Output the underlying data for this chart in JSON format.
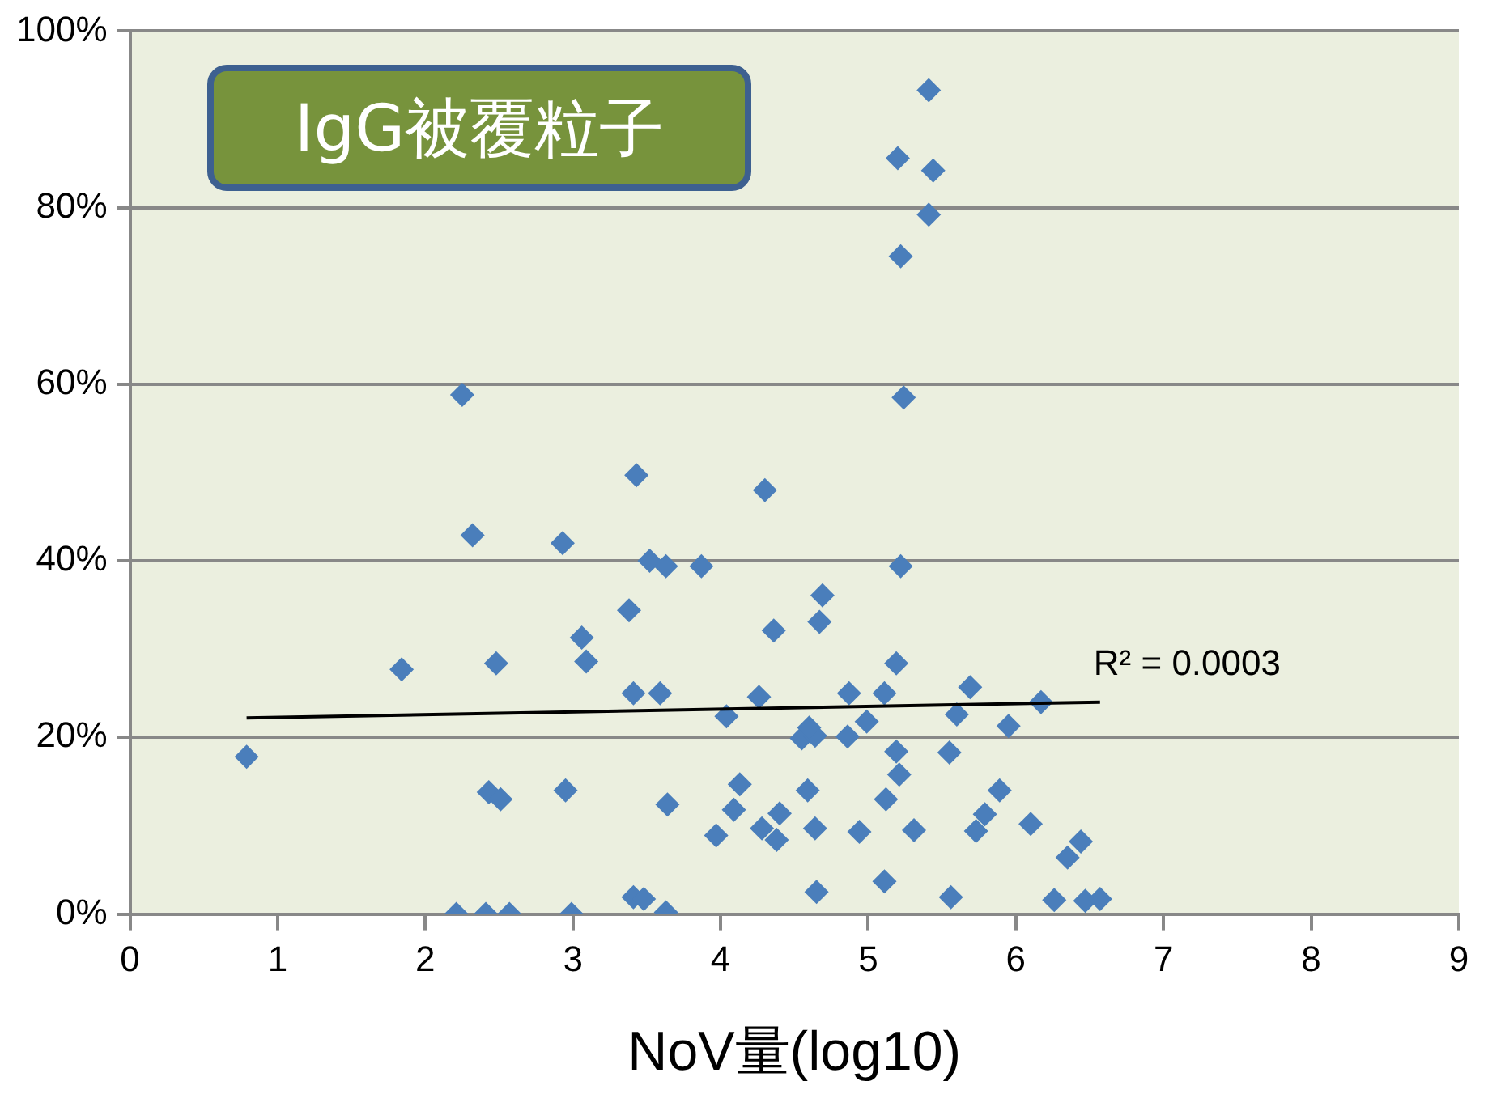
{
  "chart_data": {
    "type": "scatter",
    "title": "IgG被覆粒子",
    "xlabel": "NoV量(log10)",
    "xlim": [
      0,
      9
    ],
    "xticks": [
      0,
      1,
      2,
      3,
      4,
      5,
      6,
      7,
      8,
      9
    ],
    "ylim": [
      0,
      100
    ],
    "yticks": [
      {
        "value": 0,
        "label": "0%"
      },
      {
        "value": 20,
        "label": "20%"
      },
      {
        "value": 40,
        "label": "40%"
      },
      {
        "value": 60,
        "label": "60%"
      },
      {
        "value": 80,
        "label": "80%"
      },
      {
        "value": 100,
        "label": "100%"
      }
    ],
    "grid": "y",
    "legend": false,
    "marker": "diamond",
    "annotations": [
      {
        "text": "R² = 0.0003",
        "x": 6.57,
        "y": 24.0
      }
    ],
    "series": [
      {
        "color": "#4a7ebb",
        "x": [
          0.79,
          1.84,
          2.25,
          2.32,
          2.48,
          2.43,
          2.51,
          2.21,
          2.41,
          2.57,
          2.93,
          2.95,
          2.99,
          3.06,
          3.09,
          3.38,
          3.43,
          3.41,
          3.59,
          3.52,
          3.63,
          3.41,
          3.48,
          3.63,
          3.64,
          3.87,
          3.97,
          4.04,
          4.09,
          4.13,
          4.26,
          4.3,
          4.36,
          4.69,
          4.67,
          5.22,
          5.19,
          4.87,
          5.11,
          5.69,
          5.6,
          4.99,
          4.86,
          4.55,
          4.64,
          4.6,
          5.19,
          5.21,
          5.55,
          5.12,
          4.59,
          4.28,
          4.4,
          4.38,
          4.64,
          4.94,
          5.31,
          5.73,
          5.79,
          5.89,
          6.1,
          6.44,
          6.35,
          4.65,
          5.11,
          5.56,
          6.26,
          6.47,
          6.57,
          6.17,
          5.95,
          5.41,
          5.2,
          5.44,
          5.41,
          5.22,
          5.24
        ],
        "values": [
          17.8,
          27.7,
          58.8,
          42.9,
          28.4,
          13.8,
          13.0,
          0,
          0,
          0,
          42.0,
          14.0,
          0,
          31.3,
          28.6,
          34.4,
          49.7,
          25.0,
          25.0,
          40.0,
          39.4,
          1.9,
          1.7,
          0.2,
          12.4,
          39.4,
          8.9,
          22.4,
          11.8,
          14.7,
          24.6,
          48.0,
          32.1,
          36.1,
          33.1,
          39.4,
          28.4,
          25.0,
          25.0,
          25.7,
          22.6,
          21.8,
          20.1,
          19.9,
          20.2,
          21.1,
          18.4,
          15.8,
          18.3,
          13.0,
          14.0,
          9.7,
          11.4,
          8.4,
          9.7,
          9.3,
          9.5,
          9.4,
          11.3,
          14.0,
          10.2,
          8.2,
          6.4,
          2.5,
          3.7,
          1.9,
          1.6,
          1.5,
          1.7,
          24.0,
          21.3,
          93.3,
          85.6,
          84.2,
          79.2,
          74.5,
          58.5
        ]
      },
      {
        "type": "line",
        "color": "#000000",
        "marker": "none",
        "x": [
          0.79,
          6.57
        ],
        "values": [
          22.2,
          24.0
        ]
      }
    ]
  }
}
